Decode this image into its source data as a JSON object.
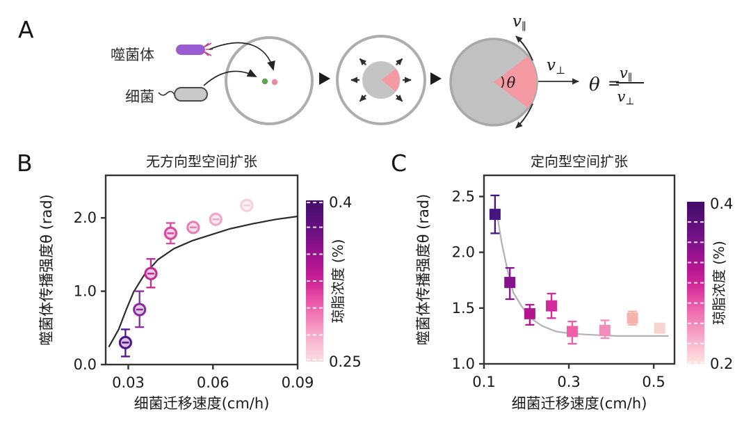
{
  "figure": {
    "background": "#ffffff"
  },
  "panelA": {
    "label": "A",
    "phage_label": "噬菌体",
    "bacteria_label": "细菌",
    "theta": "θ",
    "v_parallel": {
      "base": "v",
      "sub": "∥"
    },
    "v_perp": {
      "base": "v",
      "sub": "⊥"
    },
    "formula": {
      "theta": "θ",
      "equals": "=",
      "num_base": "v",
      "num_sub": "∥",
      "den_base": "v",
      "den_sub": "⊥"
    },
    "colors": {
      "dish_outline": "#adadad",
      "colony_gray": "#c4c4c4",
      "lysis_pink": "#f59aa2",
      "phage_purple": "#9b5ed2",
      "bacteria_gray": "#c9c9c9",
      "phage_dot_pink": "#e9899d",
      "bacteria_dot_green": "#63a24f"
    }
  },
  "panelB": {
    "label": "B"
  },
  "panelC": {
    "label": "C"
  },
  "chart_data": [
    {
      "id": "B",
      "type": "scatter",
      "title": "无方向型空间扩张",
      "xlabel": "细菌迁移速度(cm/h)",
      "ylabel": "噬菌体传播强度θ (rad)",
      "xlim": [
        0.022,
        0.09
      ],
      "ylim": [
        0,
        2.58
      ],
      "xticks": [
        {
          "v": 0.03,
          "label": "0.03"
        },
        {
          "v": 0.06,
          "label": "0.06"
        },
        {
          "v": 0.09,
          "label": "0.09"
        }
      ],
      "yticks": [
        {
          "v": 0,
          "label": "0.0"
        },
        {
          "v": 1,
          "label": "1.0"
        },
        {
          "v": 2,
          "label": "2.0"
        }
      ],
      "marker": "circle",
      "points": [
        {
          "x": 0.029,
          "y": 0.3,
          "lo": 0.11,
          "hi": 0.48,
          "agar": 0.4,
          "color": "#53148c"
        },
        {
          "x": 0.034,
          "y": 0.75,
          "lo": 0.51,
          "hi": 1.0,
          "agar": 0.375,
          "color": "#8b2aa0"
        },
        {
          "x": 0.038,
          "y": 1.24,
          "lo": 1.05,
          "hi": 1.44,
          "agar": 0.35,
          "color": "#c22b92"
        },
        {
          "x": 0.045,
          "y": 1.79,
          "lo": 1.65,
          "hi": 1.93,
          "agar": 0.325,
          "color": "#d9499e"
        },
        {
          "x": 0.053,
          "y": 1.87,
          "lo": 1.82,
          "hi": 1.92,
          "agar": 0.3,
          "color": "#e87fb4"
        },
        {
          "x": 0.061,
          "y": 1.98,
          "lo": 1.94,
          "hi": 2.02,
          "agar": 0.275,
          "color": "#efa6c8"
        },
        {
          "x": 0.072,
          "y": 2.17,
          "lo": 2.13,
          "hi": 2.21,
          "agar": 0.25,
          "color": "#f6cfdc"
        }
      ],
      "fit_curve": {
        "color": "#2b2b2b",
        "xy": [
          [
            0.0231,
            0.24
          ],
          [
            0.0266,
            0.48
          ],
          [
            0.0294,
            0.76
          ],
          [
            0.0319,
            0.99
          ],
          [
            0.0356,
            1.22
          ],
          [
            0.0405,
            1.43
          ],
          [
            0.0462,
            1.58
          ],
          [
            0.0528,
            1.69
          ],
          [
            0.0602,
            1.78
          ],
          [
            0.0659,
            1.85
          ],
          [
            0.0741,
            1.92
          ],
          [
            0.0823,
            1.98
          ],
          [
            0.09,
            2.02
          ]
        ]
      },
      "colorbar": {
        "label": "琼脂浓度 (%)",
        "min": 0.25,
        "max": 0.4,
        "min_label": "0.25",
        "max_label": "0.4",
        "dash_values": [
          0.398,
          0.375,
          0.35,
          0.325,
          0.3,
          0.275,
          0.252
        ],
        "gradient": [
          "#410a68",
          "#561077",
          "#6f1184",
          "#8f128e",
          "#b01591",
          "#cf2497",
          "#e54ba4",
          "#f075b2",
          "#f69dc4",
          "#f9c2d3",
          "#fbdce0"
        ]
      }
    },
    {
      "id": "C",
      "type": "scatter",
      "title": "定向型空间扩张",
      "xlabel": "细菌迁移速度(cm/h)",
      "ylabel": "噬菌体传播强度θ (rad)",
      "xlim": [
        0.1,
        0.549
      ],
      "ylim": [
        1.0,
        2.69
      ],
      "xticks": [
        {
          "v": 0.1,
          "label": "0.1"
        },
        {
          "v": 0.3,
          "label": "0.3"
        },
        {
          "v": 0.5,
          "label": "0.5"
        }
      ],
      "yticks": [
        {
          "v": 1.0,
          "label": "1.0"
        },
        {
          "v": 1.5,
          "label": "1.5"
        },
        {
          "v": 2.0,
          "label": "2.0"
        },
        {
          "v": 2.5,
          "label": "2.5"
        }
      ],
      "marker": "square",
      "points": [
        {
          "x": 0.126,
          "y": 2.34,
          "lo": 2.17,
          "hi": 2.51,
          "agar": 0.4,
          "color": "#471580"
        },
        {
          "x": 0.161,
          "y": 1.73,
          "lo": 1.58,
          "hi": 1.86,
          "agar": 0.375,
          "color": "#84128f"
        },
        {
          "x": 0.208,
          "y": 1.45,
          "lo": 1.35,
          "hi": 1.53,
          "agar": 0.35,
          "color": "#b5148f"
        },
        {
          "x": 0.259,
          "y": 1.52,
          "lo": 1.41,
          "hi": 1.63,
          "agar": 0.325,
          "color": "#d22a9a"
        },
        {
          "x": 0.308,
          "y": 1.29,
          "lo": 1.18,
          "hi": 1.38,
          "agar": 0.3,
          "color": "#ee5fa8"
        },
        {
          "x": 0.385,
          "y": 1.3,
          "lo": 1.23,
          "hi": 1.39,
          "agar": 0.275,
          "color": "#f28cba"
        },
        {
          "x": 0.45,
          "y": 1.41,
          "lo": 1.35,
          "hi": 1.47,
          "agar": 0.25,
          "color": "#f4b3ac"
        },
        {
          "x": 0.514,
          "y": 1.32,
          "lo": 1.28,
          "hi": 1.36,
          "agar": 0.2,
          "color": "#f8d4ce"
        }
      ],
      "fit_curve": {
        "color": "#b4b0b4",
        "xy": [
          [
            0.13,
            2.36
          ],
          [
            0.142,
            2.08
          ],
          [
            0.156,
            1.83
          ],
          [
            0.169,
            1.64
          ],
          [
            0.188,
            1.52
          ],
          [
            0.21,
            1.41
          ],
          [
            0.237,
            1.34
          ],
          [
            0.27,
            1.29
          ],
          [
            0.308,
            1.27
          ],
          [
            0.357,
            1.26
          ],
          [
            0.412,
            1.25
          ],
          [
            0.467,
            1.25
          ],
          [
            0.535,
            1.25
          ]
        ]
      },
      "colorbar": {
        "label": "琼脂浓度 (%)",
        "min": 0.2,
        "max": 0.4,
        "min_label": "0.2",
        "max_label": "0.4",
        "dash_values": [
          0.375,
          0.35,
          0.325,
          0.3,
          0.275,
          0.25,
          0.225,
          0.202
        ],
        "gradient": [
          "#410a68",
          "#561077",
          "#6f1184",
          "#8f128e",
          "#b01591",
          "#cf2497",
          "#e54ba4",
          "#f075b2",
          "#f69dc4",
          "#f9c2d3",
          "#fce4df"
        ]
      }
    }
  ]
}
